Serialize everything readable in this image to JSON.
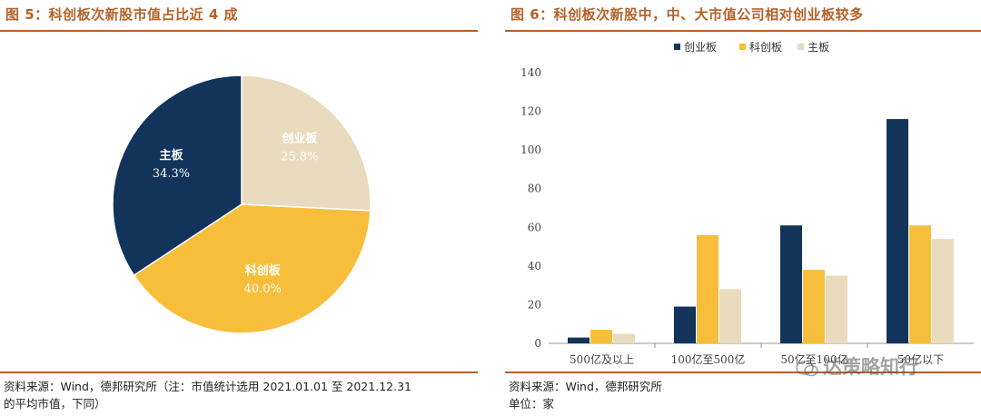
{
  "left_panel": {
    "title": "图 5：科创板次新股市值占比近 4 成",
    "source_line1": "资料来源：Wind，德邦研究所（注：市值统计选用 2021.01.01 至 2021.12.31",
    "source_line2": "的平均市值，下同）"
  },
  "right_panel": {
    "title": "图 6：科创板次新股中，中、大市值公司相对创业板较多",
    "source_line1": "资料来源：Wind，德邦研究所",
    "source_line2": "单位：家"
  },
  "watermark": {
    "text": "达策略知行"
  },
  "colors": {
    "chuangye": "#13345a",
    "kechuang": "#f7be3c",
    "zhuban": "#e9dbbd",
    "accent": "#b4612a"
  },
  "chart_data": [
    {
      "type": "pie",
      "slices": [
        {
          "name": "创业板",
          "value": 25.8,
          "label": "25.8%",
          "color": "#e9dbbd"
        },
        {
          "name": "科创板",
          "value": 40.0,
          "label": "40.0%",
          "color": "#f7be3c"
        },
        {
          "name": "主板",
          "value": 34.3,
          "label": "34.3%",
          "color": "#13345a"
        }
      ]
    },
    {
      "type": "bar",
      "categories": [
        "500亿及以上",
        "100亿至500亿",
        "50亿至100亿",
        "50亿以下"
      ],
      "series": [
        {
          "name": "创业板",
          "color": "#13345a",
          "values": [
            3,
            19,
            61,
            116
          ]
        },
        {
          "name": "科创板",
          "color": "#f7be3c",
          "values": [
            7,
            56,
            38,
            61
          ]
        },
        {
          "name": "主板",
          "color": "#e9dbbd",
          "values": [
            5,
            28,
            35,
            54
          ]
        }
      ],
      "ylim": [
        0,
        140
      ],
      "yticks": [
        0,
        20,
        40,
        60,
        80,
        100,
        120,
        140
      ],
      "legend_position": "top-center",
      "grid": false
    }
  ]
}
